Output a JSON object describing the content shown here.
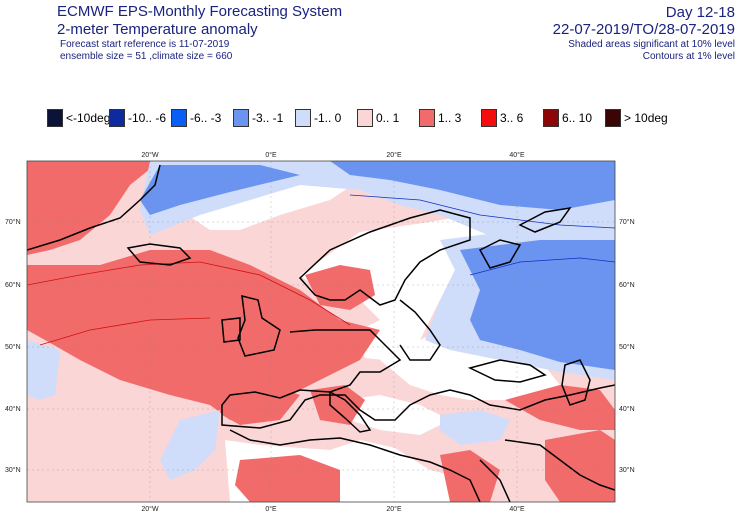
{
  "header": {
    "title": "ECMWF EPS-Monthly Forecasting System",
    "subtitle": "2-meter Temperature anomaly",
    "forecast_start": "Forecast start reference is 11-07-2019",
    "ensemble_info": "ensemble size = 51  ,climate size = 660",
    "day_range": "Day 12-18",
    "period": "22-07-2019/TO/28-07-2019",
    "note_shaded": "Shaded areas significant at 10% level",
    "note_contours": "Contours at 1% level"
  },
  "legend": [
    {
      "label": "<-10deg",
      "color": "#0b1436"
    },
    {
      "label": "-10.. -6",
      "color": "#0d2a9e"
    },
    {
      "label": "-6.. -3",
      "color": "#0a5ef5"
    },
    {
      "label": "-3.. -1",
      "color": "#6b94f0"
    },
    {
      "label": "-1..  0",
      "color": "#cfdcfa"
    },
    {
      "label": "0..  1",
      "color": "#fbd6d6"
    },
    {
      "label": "1..  3",
      "color": "#f26b6b"
    },
    {
      "label": "3..  6",
      "color": "#f50d0d"
    },
    {
      "label": "6.. 10",
      "color": "#8c0606"
    },
    {
      "label": "> 10deg",
      "color": "#3b0505"
    }
  ],
  "axes": {
    "lon_labels": [
      "20°W",
      "0°E",
      "20°E",
      "40°E"
    ],
    "lat_labels": [
      "70°N",
      "60°N",
      "50°N",
      "40°N",
      "30°N"
    ]
  },
  "map": {
    "regions": [
      {
        "name": "west-atlantic-warm",
        "category": "1..  3"
      },
      {
        "name": "western-europe-warm",
        "category": "1..  3"
      },
      {
        "name": "greenland-cool",
        "category": "-3.. -1"
      },
      {
        "name": "russia-cool",
        "category": "-3.. -1"
      },
      {
        "name": "north-africa-warm",
        "category": "1..  3"
      },
      {
        "name": "middle-east-warm",
        "category": "1..  3"
      },
      {
        "name": "central-europe-neutral",
        "category": "0..  1"
      }
    ]
  }
}
